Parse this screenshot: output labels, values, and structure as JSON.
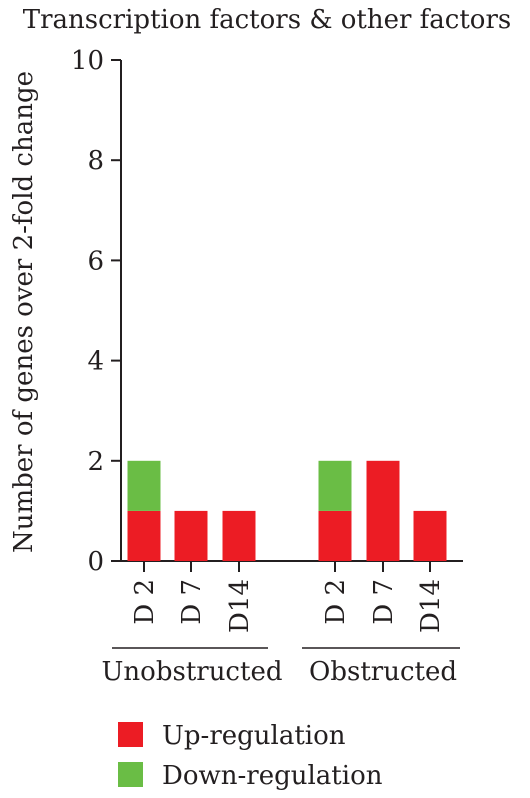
{
  "chart_data": {
    "type": "bar",
    "stacked": true,
    "title": "Transcription factors & other factors",
    "ylabel": "Number of genes over 2-fold change",
    "ylim": [
      0,
      10
    ],
    "yticks": [
      "0",
      "2",
      "4",
      "6",
      "8",
      "10"
    ],
    "categories": [
      "D 2",
      "D 7",
      "D14",
      "D 2",
      "D 7",
      "D14"
    ],
    "groups": [
      {
        "label": "Unobstructed",
        "categories": [
          "D 2",
          "D 7",
          "D14"
        ]
      },
      {
        "label": "Obstructed",
        "categories": [
          "D 2",
          "D 7",
          "D14"
        ]
      }
    ],
    "series": [
      {
        "name": "Up-regulation",
        "color": "#ec1c24",
        "values": [
          1,
          1,
          1,
          1,
          2,
          1
        ]
      },
      {
        "name": "Down-regulation",
        "color": "#6abd45",
        "values": [
          1,
          0,
          0,
          1,
          0,
          0
        ]
      }
    ],
    "legend_position": "bottom-left"
  }
}
